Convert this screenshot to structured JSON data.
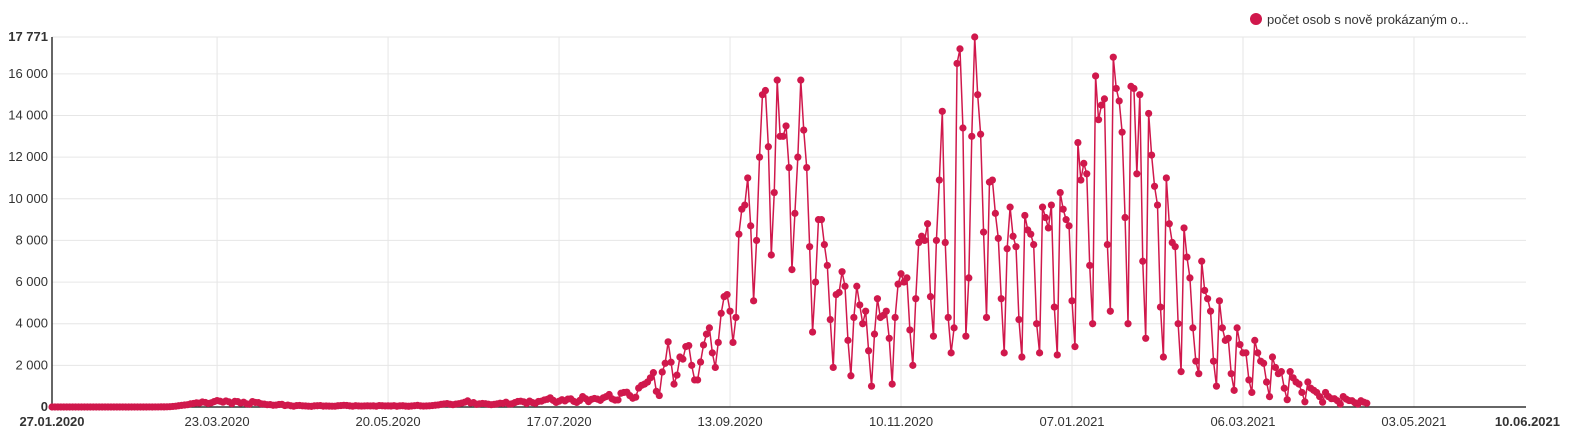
{
  "legend": {
    "label": "počet osob s nově prokázaným o...",
    "position": "top-right"
  },
  "chart_data": {
    "type": "line",
    "title": "",
    "xlabel": "",
    "ylabel": "",
    "color": "#d0184c",
    "grid": true,
    "ylim": [
      0,
      17771
    ],
    "xlim": [
      "2020-01-27",
      "2021-06-10"
    ],
    "y_ticks": [
      {
        "value": 0,
        "label": "0",
        "bold": true
      },
      {
        "value": 2000,
        "label": "2 000"
      },
      {
        "value": 4000,
        "label": "4 000"
      },
      {
        "value": 6000,
        "label": "6 000"
      },
      {
        "value": 8000,
        "label": "8 000"
      },
      {
        "value": 10000,
        "label": "10 000"
      },
      {
        "value": 12000,
        "label": "12 000"
      },
      {
        "value": 14000,
        "label": "14 000"
      },
      {
        "value": 16000,
        "label": "16 000"
      },
      {
        "value": 17771,
        "label": "17 771",
        "bold": true
      }
    ],
    "x_ticks": [
      {
        "date": "2020-01-27",
        "label": "27.01.2020",
        "bold": true
      },
      {
        "date": "2020-03-23",
        "label": "23.03.2020"
      },
      {
        "date": "2020-05-20",
        "label": "20.05.2020"
      },
      {
        "date": "2020-07-17",
        "label": "17.07.2020"
      },
      {
        "date": "2020-09-13",
        "label": "13.09.2020"
      },
      {
        "date": "2020-11-10",
        "label": "10.11.2020"
      },
      {
        "date": "2021-01-07",
        "label": "07.01.2021"
      },
      {
        "date": "2021-03-06",
        "label": "06.03.2021"
      },
      {
        "date": "2021-05-03",
        "label": "03.05.2021"
      },
      {
        "date": "2021-06-10",
        "label": "10.06.2021",
        "bold": true
      }
    ],
    "series": [
      {
        "name": "počet osob s nově prokázaným o...",
        "x_start": "2020-01-27",
        "step_days": 1,
        "values": [
          0,
          0,
          0,
          0,
          0,
          0,
          0,
          0,
          0,
          0,
          0,
          0,
          0,
          0,
          0,
          0,
          0,
          0,
          0,
          0,
          0,
          0,
          0,
          0,
          0,
          0,
          0,
          0,
          0,
          0,
          0,
          0,
          1,
          2,
          0,
          3,
          2,
          6,
          5,
          10,
          14,
          26,
          40,
          61,
          78,
          95,
          110,
          150,
          172,
          200,
          190,
          240,
          220,
          170,
          200,
          260,
          310,
          280,
          230,
          290,
          250,
          160,
          270,
          260,
          190,
          230,
          150,
          140,
          260,
          220,
          210,
          150,
          140,
          110,
          115,
          84,
          93,
          120,
          130,
          70,
          92,
          60,
          38,
          70,
          75,
          56,
          52,
          40,
          30,
          55,
          60,
          70,
          43,
          48,
          42,
          38,
          40,
          60,
          70,
          80,
          72,
          54,
          40,
          63,
          52,
          46,
          52,
          58,
          50,
          55,
          40,
          68,
          60,
          50,
          54,
          47,
          62,
          36,
          58,
          60,
          42,
          35,
          48,
          62,
          78,
          55,
          45,
          50,
          58,
          70,
          84,
          98,
          130,
          145,
          165,
          135,
          110,
          142,
          160,
          190,
          232,
          294,
          190,
          210,
          131,
          150,
          170,
          160,
          133,
          110,
          130,
          150,
          180,
          172,
          230,
          142,
          150,
          210,
          263,
          280,
          248,
          169,
          284,
          212,
          178,
          267,
          280,
          340,
          370,
          440,
          320,
          220,
          280,
          350,
          290,
          380,
          390,
          270,
          220,
          311,
          500,
          400,
          260,
          370,
          410,
          380,
          320,
          440,
          500,
          600,
          390,
          330,
          340,
          660,
          700,
          710,
          550,
          420,
          470,
          910,
          1040,
          1100,
          1200,
          1400,
          1650,
          750,
          550,
          1680,
          2100,
          3130,
          2150,
          1100,
          1530,
          2400,
          2300,
          2900,
          2950,
          2000,
          1300,
          1300,
          2160,
          2980,
          3500,
          3800,
          2600,
          1900,
          3100,
          4500,
          5300,
          5400,
          4600,
          3100,
          4300,
          8300,
          9500,
          9700,
          11000,
          8700,
          5100,
          8000,
          12000,
          15000,
          15200,
          12500,
          7300,
          10300,
          15700,
          13000,
          13000,
          13500,
          11500,
          6600,
          9300,
          12000,
          15700,
          13300,
          11500,
          7700,
          3600,
          6000,
          9000,
          9000,
          7800,
          6800,
          4200,
          1900,
          5400,
          5500,
          6500,
          5800,
          3200,
          1500,
          4300,
          5800,
          4900,
          4000,
          4600,
          2700,
          1000,
          3500,
          5200,
          4300,
          4400,
          4600,
          3300,
          1100,
          4300,
          5900,
          6400,
          6000,
          6200,
          3700,
          2000,
          5200,
          7900,
          8200,
          8000,
          8800,
          5300,
          3400,
          8000,
          10900,
          14200,
          7900,
          4300,
          2600,
          3800,
          16500,
          17200,
          13400,
          3400,
          6200,
          13000,
          17771,
          15000,
          13100,
          8400,
          4300,
          10800,
          10900,
          9300,
          8100,
          5200,
          2600,
          7600,
          9600,
          8200,
          7700,
          4200,
          2400,
          9200,
          8500,
          8300,
          7800,
          4000,
          2600,
          9600,
          9100,
          8600,
          9700,
          4800,
          2500,
          10300,
          9500,
          9000,
          8700,
          5100,
          2900,
          12700,
          10900,
          11700,
          11200,
          6800,
          4000,
          15900,
          13800,
          14500,
          14800,
          7800,
          4600,
          16800,
          15300,
          14700,
          13200,
          9100,
          4000,
          15400,
          15300,
          11200,
          15000,
          7000,
          3300,
          14100,
          12100,
          10600,
          9700,
          4800,
          2400,
          11000,
          8800,
          7900,
          7700,
          4000,
          1700,
          8600,
          7200,
          6200,
          3800,
          2200,
          1600,
          7000,
          5600,
          5200,
          4600,
          2200,
          1000,
          5100,
          3800,
          3200,
          3300,
          1600,
          800,
          3800,
          3000,
          2600,
          2600,
          1300,
          700,
          3200,
          2600,
          2200,
          2100,
          1200,
          500,
          2400,
          1900,
          1600,
          1700,
          900,
          350,
          1700,
          1400,
          1200,
          1100,
          700,
          250,
          1200,
          900,
          800,
          700,
          500,
          230,
          700,
          500,
          400,
          400,
          300,
          140,
          500,
          380,
          310,
          300,
          200,
          140,
          300,
          230,
          180
        ]
      }
    ]
  }
}
